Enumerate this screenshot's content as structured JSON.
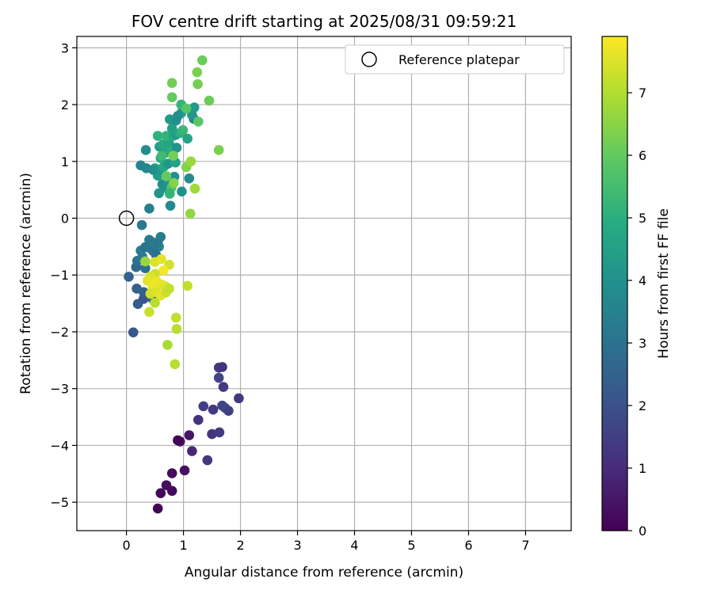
{
  "chart_data": {
    "type": "scatter",
    "title": "FOV centre drift starting at 2025/08/31 09:59:21",
    "xlabel": "Angular distance from reference (arcmin)",
    "ylabel": "Rotation from reference (arcmin)",
    "xlim": [
      -0.87,
      7.8
    ],
    "ylim": [
      -5.5,
      3.2
    ],
    "xticks": [
      0,
      1,
      2,
      3,
      4,
      5,
      6,
      7
    ],
    "yticks": [
      -5,
      -4,
      -3,
      -2,
      -1,
      0,
      1,
      2,
      3
    ],
    "xtick_labels": [
      "0",
      "1",
      "2",
      "3",
      "4",
      "5",
      "6",
      "7"
    ],
    "ytick_labels": [
      "−5",
      "−4",
      "−3",
      "−2",
      "−1",
      "0",
      "1",
      "2",
      "3"
    ],
    "grid": true,
    "legend": {
      "position": "top-right",
      "entries": [
        {
          "label": "Reference platepar",
          "marker": "open-circle"
        }
      ]
    },
    "reference_point": {
      "x": 0,
      "y": 0
    },
    "colorbar": {
      "label": "Hours from first FF file",
      "min": 0,
      "max": 7.9,
      "ticks": [
        0,
        1,
        2,
        3,
        4,
        5,
        6,
        7
      ],
      "tick_labels": [
        "0",
        "1",
        "2",
        "3",
        "4",
        "5",
        "6",
        "7"
      ],
      "colormap": "viridis"
    },
    "points": [
      {
        "x": 0.55,
        "y": -5.11,
        "t": 0.05
      },
      {
        "x": 0.6,
        "y": -4.84,
        "t": 0.15
      },
      {
        "x": 0.8,
        "y": -4.8,
        "t": 0.2
      },
      {
        "x": 0.7,
        "y": -4.7,
        "t": 0.3
      },
      {
        "x": 0.8,
        "y": -4.49,
        "t": 0.25
      },
      {
        "x": 1.02,
        "y": -4.44,
        "t": 0.4
      },
      {
        "x": 0.94,
        "y": -3.93,
        "t": 0.35
      },
      {
        "x": 0.9,
        "y": -3.91,
        "t": 0.1
      },
      {
        "x": 1.1,
        "y": -3.82,
        "t": 0.5
      },
      {
        "x": 1.15,
        "y": -4.1,
        "t": 0.9
      },
      {
        "x": 1.42,
        "y": -4.26,
        "t": 1.3
      },
      {
        "x": 1.26,
        "y": -3.55,
        "t": 1.2
      },
      {
        "x": 1.35,
        "y": -3.31,
        "t": 1.5
      },
      {
        "x": 1.5,
        "y": -3.8,
        "t": 1.2
      },
      {
        "x": 1.63,
        "y": -3.77,
        "t": 1.4
      },
      {
        "x": 1.52,
        "y": -3.37,
        "t": 1.4
      },
      {
        "x": 1.68,
        "y": -3.3,
        "t": 1.6
      },
      {
        "x": 1.73,
        "y": -3.34,
        "t": 1.8
      },
      {
        "x": 1.79,
        "y": -3.39,
        "t": 1.5
      },
      {
        "x": 1.97,
        "y": -3.17,
        "t": 1.3
      },
      {
        "x": 1.7,
        "y": -2.97,
        "t": 1.4
      },
      {
        "x": 1.62,
        "y": -2.81,
        "t": 1.6
      },
      {
        "x": 1.62,
        "y": -2.63,
        "t": 1.3
      },
      {
        "x": 1.68,
        "y": -2.62,
        "t": 1.2
      },
      {
        "x": 0.12,
        "y": -2.01,
        "t": 2.2
      },
      {
        "x": 0.2,
        "y": -1.51,
        "t": 2.3
      },
      {
        "x": 0.3,
        "y": -1.42,
        "t": 2.1
      },
      {
        "x": 0.18,
        "y": -1.24,
        "t": 2.4
      },
      {
        "x": 0.3,
        "y": -1.3,
        "t": 2.5
      },
      {
        "x": 0.4,
        "y": -1.33,
        "t": 2.2
      },
      {
        "x": 0.46,
        "y": -1.42,
        "t": 2.6
      },
      {
        "x": 0.04,
        "y": -1.03,
        "t": 2.5
      },
      {
        "x": 0.17,
        "y": -0.86,
        "t": 2.7
      },
      {
        "x": 0.19,
        "y": -0.75,
        "t": 3.0
      },
      {
        "x": 0.28,
        "y": -0.68,
        "t": 3.2
      },
      {
        "x": 0.33,
        "y": -0.88,
        "t": 2.9
      },
      {
        "x": 0.25,
        "y": -0.57,
        "t": 3.3
      },
      {
        "x": 0.33,
        "y": -0.51,
        "t": 3.0
      },
      {
        "x": 0.4,
        "y": -0.52,
        "t": 3.1
      },
      {
        "x": 0.4,
        "y": -0.38,
        "t": 3.3
      },
      {
        "x": 0.45,
        "y": -0.42,
        "t": 3.2
      },
      {
        "x": 0.5,
        "y": -0.48,
        "t": 3.4
      },
      {
        "x": 0.57,
        "y": -0.5,
        "t": 3.5
      },
      {
        "x": 0.6,
        "y": -0.33,
        "t": 3.4
      },
      {
        "x": 0.55,
        "y": -0.43,
        "t": 3.2
      },
      {
        "x": 0.47,
        "y": -0.58,
        "t": 3.1
      },
      {
        "x": 0.52,
        "y": -0.65,
        "t": 2.9
      },
      {
        "x": 0.27,
        "y": -0.12,
        "t": 3.2
      },
      {
        "x": 0.4,
        "y": 0.17,
        "t": 3.4
      },
      {
        "x": 0.77,
        "y": 0.22,
        "t": 3.8
      },
      {
        "x": 0.57,
        "y": 0.44,
        "t": 4.1
      },
      {
        "x": 0.71,
        "y": 0.52,
        "t": 4.2
      },
      {
        "x": 0.97,
        "y": 0.47,
        "t": 4.0
      },
      {
        "x": 0.63,
        "y": 0.6,
        "t": 3.9
      },
      {
        "x": 0.72,
        "y": 0.69,
        "t": 4.3
      },
      {
        "x": 0.84,
        "y": 0.73,
        "t": 3.9
      },
      {
        "x": 1.1,
        "y": 0.7,
        "t": 3.8
      },
      {
        "x": 0.55,
        "y": 0.75,
        "t": 4.4
      },
      {
        "x": 0.6,
        "y": 0.86,
        "t": 4.2
      },
      {
        "x": 0.5,
        "y": 0.88,
        "t": 4.6
      },
      {
        "x": 0.47,
        "y": 0.85,
        "t": 4.0
      },
      {
        "x": 0.35,
        "y": 0.88,
        "t": 3.7
      },
      {
        "x": 0.25,
        "y": 0.93,
        "t": 3.6
      },
      {
        "x": 0.66,
        "y": 0.91,
        "t": 4.8
      },
      {
        "x": 0.73,
        "y": 0.96,
        "t": 4.2
      },
      {
        "x": 0.86,
        "y": 0.98,
        "t": 4.6
      },
      {
        "x": 0.34,
        "y": 1.2,
        "t": 3.9
      },
      {
        "x": 0.6,
        "y": 1.06,
        "t": 4.9
      },
      {
        "x": 0.68,
        "y": 1.15,
        "t": 4.7
      },
      {
        "x": 0.58,
        "y": 1.26,
        "t": 4.4
      },
      {
        "x": 0.64,
        "y": 1.3,
        "t": 4.8
      },
      {
        "x": 0.75,
        "y": 1.31,
        "t": 4.6
      },
      {
        "x": 0.8,
        "y": 1.19,
        "t": 5.0
      },
      {
        "x": 0.88,
        "y": 1.24,
        "t": 4.1
      },
      {
        "x": 0.55,
        "y": 1.45,
        "t": 5.1
      },
      {
        "x": 0.7,
        "y": 1.45,
        "t": 5.2
      },
      {
        "x": 0.82,
        "y": 1.45,
        "t": 4.8
      },
      {
        "x": 0.87,
        "y": 1.47,
        "t": 4.3
      },
      {
        "x": 0.94,
        "y": 1.5,
        "t": 5.0
      },
      {
        "x": 0.99,
        "y": 1.55,
        "t": 5.3
      },
      {
        "x": 1.07,
        "y": 1.4,
        "t": 4.6
      },
      {
        "x": 0.8,
        "y": 1.58,
        "t": 4.5
      },
      {
        "x": 0.76,
        "y": 1.74,
        "t": 4.3
      },
      {
        "x": 0.87,
        "y": 1.72,
        "t": 4.0
      },
      {
        "x": 0.96,
        "y": 1.85,
        "t": 4.4
      },
      {
        "x": 0.9,
        "y": 1.8,
        "t": 3.9
      },
      {
        "x": 1.0,
        "y": 1.93,
        "t": 4.1
      },
      {
        "x": 0.96,
        "y": 2.0,
        "t": 5.2
      },
      {
        "x": 1.18,
        "y": 1.75,
        "t": 3.6
      },
      {
        "x": 1.15,
        "y": 1.82,
        "t": 4.2
      },
      {
        "x": 1.19,
        "y": 1.95,
        "t": 4.3
      },
      {
        "x": 1.26,
        "y": 1.7,
        "t": 5.9
      },
      {
        "x": 1.05,
        "y": 1.93,
        "t": 5.8
      },
      {
        "x": 0.8,
        "y": 2.13,
        "t": 6.0
      },
      {
        "x": 0.8,
        "y": 2.38,
        "t": 6.2
      },
      {
        "x": 1.25,
        "y": 2.36,
        "t": 6.2
      },
      {
        "x": 1.24,
        "y": 2.57,
        "t": 6.3
      },
      {
        "x": 1.33,
        "y": 2.78,
        "t": 6.1
      },
      {
        "x": 1.45,
        "y": 2.07,
        "t": 6.1
      },
      {
        "x": 1.62,
        "y": 1.2,
        "t": 6.3
      },
      {
        "x": 0.62,
        "y": 1.1,
        "t": 5.4
      },
      {
        "x": 0.82,
        "y": 1.1,
        "t": 6.2
      },
      {
        "x": 1.05,
        "y": 0.9,
        "t": 6.4
      },
      {
        "x": 1.13,
        "y": 1.0,
        "t": 6.7
      },
      {
        "x": 0.7,
        "y": 0.74,
        "t": 6.0
      },
      {
        "x": 0.79,
        "y": 0.54,
        "t": 5.7
      },
      {
        "x": 0.76,
        "y": 0.43,
        "t": 5.2
      },
      {
        "x": 0.83,
        "y": 0.62,
        "t": 6.4
      },
      {
        "x": 1.2,
        "y": 0.52,
        "t": 6.8
      },
      {
        "x": 1.12,
        "y": 0.08,
        "t": 6.6
      },
      {
        "x": 0.33,
        "y": -0.76,
        "t": 6.7
      },
      {
        "x": 0.5,
        "y": -0.77,
        "t": 7.5
      },
      {
        "x": 0.61,
        "y": -0.72,
        "t": 7.6
      },
      {
        "x": 0.75,
        "y": -0.82,
        "t": 7.4
      },
      {
        "x": 0.65,
        "y": -0.92,
        "t": 7.8
      },
      {
        "x": 0.5,
        "y": -0.98,
        "t": 7.3
      },
      {
        "x": 0.42,
        "y": -1.03,
        "t": 7.5
      },
      {
        "x": 0.37,
        "y": -1.1,
        "t": 7.6
      },
      {
        "x": 0.53,
        "y": -1.11,
        "t": 7.7
      },
      {
        "x": 0.62,
        "y": -1.17,
        "t": 7.6
      },
      {
        "x": 0.68,
        "y": -1.2,
        "t": 7.5
      },
      {
        "x": 0.46,
        "y": -1.22,
        "t": 7.7
      },
      {
        "x": 0.42,
        "y": -1.33,
        "t": 7.4
      },
      {
        "x": 0.52,
        "y": -1.3,
        "t": 7.5
      },
      {
        "x": 0.6,
        "y": -1.36,
        "t": 7.6
      },
      {
        "x": 0.69,
        "y": -1.31,
        "t": 7.3
      },
      {
        "x": 0.75,
        "y": -1.24,
        "t": 7.2
      },
      {
        "x": 0.5,
        "y": -1.49,
        "t": 7.1
      },
      {
        "x": 0.4,
        "y": -1.65,
        "t": 7.3
      },
      {
        "x": 1.07,
        "y": -1.19,
        "t": 7.2
      },
      {
        "x": 0.87,
        "y": -1.75,
        "t": 7.2
      },
      {
        "x": 0.88,
        "y": -1.95,
        "t": 7.1
      },
      {
        "x": 0.72,
        "y": -2.23,
        "t": 6.9
      },
      {
        "x": 0.85,
        "y": -2.57,
        "t": 7.1
      }
    ]
  }
}
